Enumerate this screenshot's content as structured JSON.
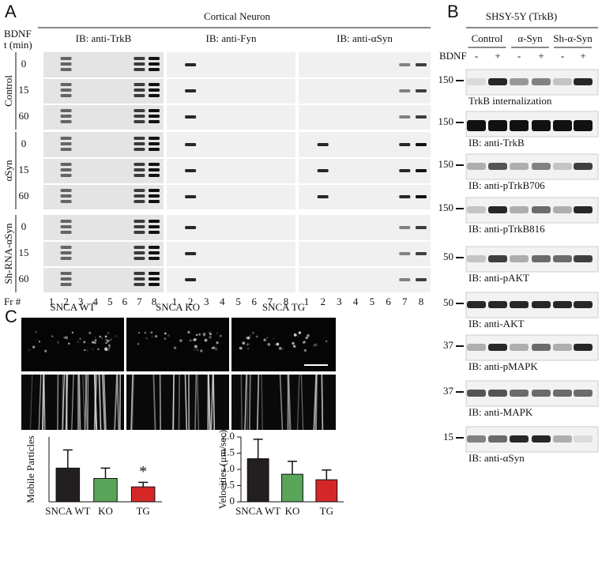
{
  "panel_a": {
    "label": "A",
    "title": "Cortical Neuron",
    "bdnf": "BDNF",
    "time": "t (min)",
    "blots": [
      "IB: anti-TrkB",
      "IB: anti-Fyn",
      "IB: anti-αSyn"
    ],
    "groups": [
      {
        "name": "Control",
        "times": [
          "0",
          "15",
          "60"
        ]
      },
      {
        "name": "αSyn",
        "times": [
          "0",
          "15",
          "60"
        ]
      },
      {
        "name": "Sh-RNA-αSyn",
        "times": [
          "0",
          "15",
          "60"
        ]
      }
    ],
    "fraction_label": "Fr #",
    "fractions": [
      "1",
      "2",
      "3",
      "4",
      "5",
      "6",
      "7",
      "8"
    ]
  },
  "panel_b": {
    "label": "B",
    "title": "SHSY-5Y (TrkB)",
    "groups": [
      "Control",
      "α-Syn",
      "Sh-α-Syn"
    ],
    "bdnf": "BDNF",
    "treatments": [
      "-",
      "+"
    ],
    "blots": [
      {
        "marker": "150",
        "caption": "TrkB internalization"
      },
      {
        "marker": "150",
        "caption": "IB: anti-TrkB"
      },
      {
        "marker": "150",
        "caption": "IB: anti-pTrkB706"
      },
      {
        "marker": "150",
        "caption": "IB: anti-pTrkB816"
      },
      {
        "marker": "50",
        "caption": "IB: anti-pAKT"
      },
      {
        "marker": "50",
        "caption": "IB: anti-AKT"
      },
      {
        "marker": "37",
        "caption": "IB: anti-pMAPK"
      },
      {
        "marker": "37",
        "caption": "IB: anti-MAPK"
      },
      {
        "marker": "15",
        "caption": "IB: anti-αSyn"
      }
    ]
  },
  "panel_c": {
    "label": "C",
    "images": [
      "SNCA WT",
      "SNCA KO",
      "SNCA TG"
    ]
  },
  "chart_data": [
    {
      "type": "bar",
      "ylabel": "Mobile Particles",
      "categories": [
        "SNCA WT",
        "KO",
        "TG"
      ],
      "values": [
        26,
        18,
        11.5
      ],
      "errors": [
        14,
        8,
        3.5
      ],
      "colors": [
        "#231f20",
        "#5aa55a",
        "#d62728"
      ],
      "ylim": [
        0,
        50
      ],
      "annotations": [
        "*"
      ]
    },
    {
      "type": "bar",
      "ylabel": "Velocities (μm/sec)",
      "categories": [
        "SNCA WT",
        "KO",
        "TG"
      ],
      "values": [
        1.33,
        0.85,
        0.68
      ],
      "errors": [
        0.6,
        0.4,
        0.3
      ],
      "colors": [
        "#231f20",
        "#5aa55a",
        "#d62728"
      ],
      "ylim": [
        0,
        2
      ],
      "yticks": [
        0,
        0.5,
        {
          "value": 1,
          "label": "1.0"
        },
        1.5,
        {
          "value": 2,
          "label": "2.0"
        }
      ]
    }
  ]
}
